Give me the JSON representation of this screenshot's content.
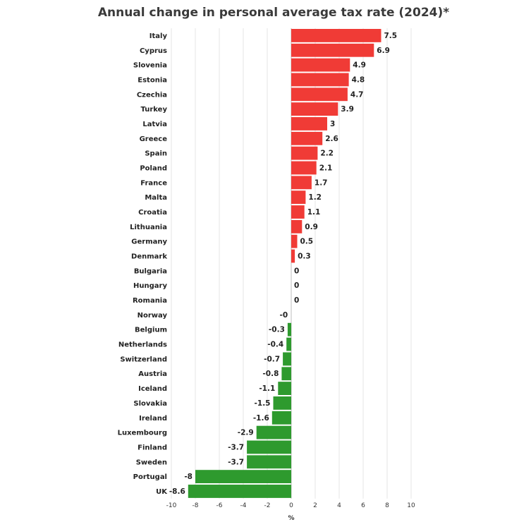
{
  "chart_data": {
    "type": "bar",
    "orientation": "horizontal",
    "title": "Annual change in personal average tax rate (2024)*",
    "xlabel": "%",
    "ylabel": "",
    "xlim": [
      -10,
      10
    ],
    "xticks": [
      -10,
      -8,
      -6,
      -4,
      -2,
      0,
      2,
      4,
      6,
      8,
      10
    ],
    "grid": true,
    "legend": "none",
    "colors": {
      "positive": "#f03b36",
      "negative": "#2e9a2e"
    },
    "categories": [
      "Italy",
      "Cyprus",
      "Slovenia",
      "Estonia",
      "Czechia",
      "Turkey",
      "Latvia",
      "Greece",
      "Spain",
      "Poland",
      "France",
      "Malta",
      "Croatia",
      "Lithuania",
      "Germany",
      "Denmark",
      "Bulgaria",
      "Hungary",
      "Romania",
      "Norway",
      "Belgium",
      "Netherlands",
      "Switzerland",
      "Austria",
      "Iceland",
      "Slovakia",
      "Ireland",
      "Luxembourg",
      "Finland",
      "Sweden",
      "Portugal",
      "UK"
    ],
    "values": [
      7.5,
      6.9,
      4.9,
      4.8,
      4.7,
      3.9,
      3,
      2.6,
      2.2,
      2.1,
      1.7,
      1.2,
      1.1,
      0.9,
      0.5,
      0.3,
      0,
      0,
      0,
      -0.05,
      -0.3,
      -0.4,
      -0.7,
      -0.8,
      -1.1,
      -1.5,
      -1.6,
      -2.9,
      -3.7,
      -3.7,
      -8,
      -8.6
    ],
    "value_labels": [
      "7.5",
      "6.9",
      "4.9",
      "4.8",
      "4.7",
      "3.9",
      "3",
      "2.6",
      "2.2",
      "2.1",
      "1.7",
      "1.2",
      "1.1",
      "0.9",
      "0.5",
      "0.3",
      "0",
      "0",
      "0",
      "-0",
      "-0.3",
      "-0.4",
      "-0.7",
      "-0.8",
      "-1.1",
      "-1.5",
      "-1.6",
      "-2.9",
      "-3.7",
      "-3.7",
      "-8",
      "-8.6"
    ]
  }
}
